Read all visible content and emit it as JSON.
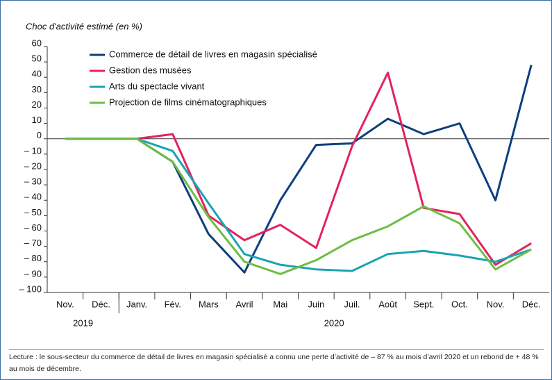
{
  "chart_data": {
    "type": "line",
    "y_label": "Choc d'activité estimé (en %)",
    "categories": [
      "Nov.",
      "Déc.",
      "Janv.",
      "Fév.",
      "Mars",
      "Avril",
      "Mai",
      "Juin",
      "Juil.",
      "Août",
      "Sept.",
      "Oct.",
      "Nov.",
      "Déc."
    ],
    "year_labels": [
      {
        "label": "2019",
        "from": 0,
        "to": 1
      },
      {
        "label": "2020",
        "from": 2,
        "to": 13
      }
    ],
    "series": [
      {
        "name": "Commerce de détail de livres en magasin spécialisé",
        "color": "#0d3f7e",
        "values": [
          0,
          0,
          0,
          -15,
          -62,
          -87,
          -40,
          -4,
          -3,
          13,
          3,
          10,
          -40,
          48
        ]
      },
      {
        "name": "Gestion des musées",
        "color": "#e2245c",
        "values": [
          0,
          0,
          0,
          3,
          -50,
          -66,
          -56,
          -71,
          -5,
          43,
          -45,
          -49,
          -82,
          -68
        ]
      },
      {
        "name": "Arts du spectacle vivant",
        "color": "#19a3b4",
        "values": [
          0,
          0,
          0,
          -8,
          -42,
          -75,
          -82,
          -85,
          -86,
          -75,
          -73,
          -76,
          -80,
          -72
        ]
      },
      {
        "name": "Projection de films cinématographiques",
        "color": "#6cbd45",
        "values": [
          0,
          0,
          0,
          -15,
          -51,
          -80,
          -88,
          -79,
          -66,
          -57,
          -44,
          -55,
          -85,
          -72
        ]
      }
    ],
    "ylim": [
      -100,
      60
    ],
    "yticks": [
      60,
      50,
      40,
      30,
      20,
      10,
      0,
      {
        "value": -10,
        "label": "– 10"
      },
      {
        "value": -20,
        "label": "– 20"
      },
      {
        "value": -30,
        "label": "– 30"
      },
      {
        "value": -40,
        "label": "– 40"
      },
      {
        "value": -50,
        "label": "– 50"
      },
      {
        "value": -60,
        "label": "– 60"
      },
      {
        "value": -70,
        "label": "– 70"
      },
      {
        "value": -80,
        "label": "– 80"
      },
      {
        "value": -90,
        "label": "– 90"
      },
      {
        "value": -100,
        "label": "– 100"
      }
    ],
    "note": "Lecture : le sous-secteur du commerce de détail de livres en magasin spécialisé a connu une perte d’activité de – 87 % au mois d’avril 2020 et un rebond de + 48 % au mois de décembre."
  }
}
